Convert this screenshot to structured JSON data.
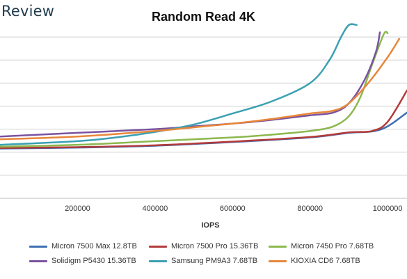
{
  "brand": "Review",
  "chart_data": {
    "type": "line",
    "title": "Random Read 4K",
    "xlabel": "IOPS",
    "ylabel": "",
    "xlim": [
      0,
      1050000
    ],
    "ylim": [
      0,
      2000
    ],
    "xticks": [
      200000,
      400000,
      600000,
      800000,
      1000000
    ],
    "xtick_labels": [
      "200000",
      "400000",
      "600000",
      "800000",
      "1000000"
    ],
    "gridlines": [
      250,
      500,
      750,
      1000,
      1250,
      1500,
      1750
    ],
    "grid": "horizontal",
    "legend_position": "bottom",
    "series": [
      {
        "name": "Micron 7500 Max 12.8TB",
        "color": "#3f6fb2",
        "x": [
          0,
          200000,
          400000,
          600000,
          800000,
          900000,
          960000,
          1000000,
          1050000
        ],
        "y": [
          540,
          550,
          570,
          610,
          660,
          710,
          725,
          780,
          930
        ]
      },
      {
        "name": "Micron 7500 Pro 15.36TB",
        "color": "#b33a3a",
        "x": [
          0,
          200000,
          400000,
          600000,
          800000,
          900000,
          960000,
          1000000,
          1050000
        ],
        "y": [
          545,
          555,
          575,
          615,
          665,
          715,
          730,
          830,
          1170
        ]
      },
      {
        "name": "Micron 7450 Pro 7.68TB",
        "color": "#8cb84e",
        "x": [
          0,
          200000,
          400000,
          600000,
          700000,
          800000,
          860000,
          900000,
          930000,
          960000,
          990000,
          1000000
        ],
        "y": [
          560,
          580,
          620,
          660,
          690,
          730,
          780,
          890,
          1100,
          1450,
          1780,
          1790
        ]
      },
      {
        "name": "Solidigm P5430 15.36TB",
        "color": "#7a53a0",
        "x": [
          0,
          200000,
          400000,
          500000,
          600000,
          700000,
          800000,
          860000,
          900000,
          940000,
          970000,
          980000
        ],
        "y": [
          670,
          710,
          750,
          780,
          810,
          850,
          900,
          930,
          1030,
          1280,
          1590,
          1800
        ]
      },
      {
        "name": "Samsung PM9A3 7.68TB",
        "color": "#3aa0b2",
        "x": [
          0,
          200000,
          300000,
          400000,
          500000,
          600000,
          700000,
          800000,
          850000,
          880000,
          900000,
          920000
        ],
        "y": [
          580,
          620,
          660,
          720,
          800,
          920,
          1050,
          1250,
          1500,
          1750,
          1880,
          1880
        ]
      },
      {
        "name": "KIOXIA CD6 7.68TB",
        "color": "#e8873a",
        "x": [
          0,
          200000,
          400000,
          500000,
          600000,
          700000,
          800000,
          860000,
          900000,
          950000,
          1000000,
          1030000
        ],
        "y": [
          640,
          670,
          730,
          770,
          810,
          860,
          920,
          950,
          1030,
          1250,
          1530,
          1730
        ]
      }
    ]
  }
}
